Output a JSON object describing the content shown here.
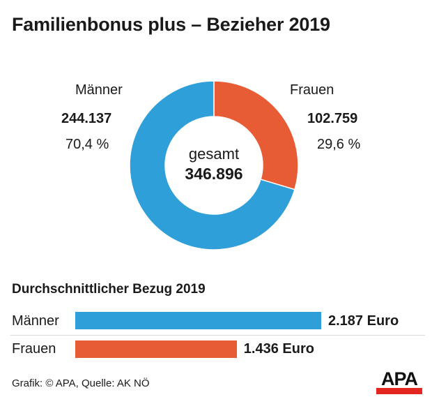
{
  "title": "Familienbonus plus – Bezieher 2019",
  "chart_data": [
    {
      "type": "pie",
      "variant": "donut",
      "title": "Familienbonus plus – Bezieher 2019",
      "center_label": "gesamt",
      "center_value": "346.896",
      "total": 346896,
      "slices": [
        {
          "name": "Frauen",
          "value": 102759,
          "value_label": "102.759",
          "percent": 29.6,
          "percent_label": "29,6 %",
          "color": "#e85c35"
        },
        {
          "name": "Männer",
          "value": 244137,
          "value_label": "244.137",
          "percent": 70.4,
          "percent_label": "70,4 %",
          "color": "#2f9fda"
        }
      ]
    },
    {
      "type": "bar",
      "orientation": "horizontal",
      "title": "Durchschnittlicher Bezug 2019",
      "categories": [
        "Männer",
        "Frauen"
      ],
      "values": [
        2187,
        1436
      ],
      "value_labels": [
        "2.187 Euro",
        "1.436 Euro"
      ],
      "unit": "Euro",
      "colors": [
        "#2f9fda",
        "#e85c35"
      ],
      "xlim": [
        0,
        2187
      ]
    }
  ],
  "footer": {
    "source": "Grafik: © APA, Quelle: AK NÖ",
    "logo": "APA"
  }
}
